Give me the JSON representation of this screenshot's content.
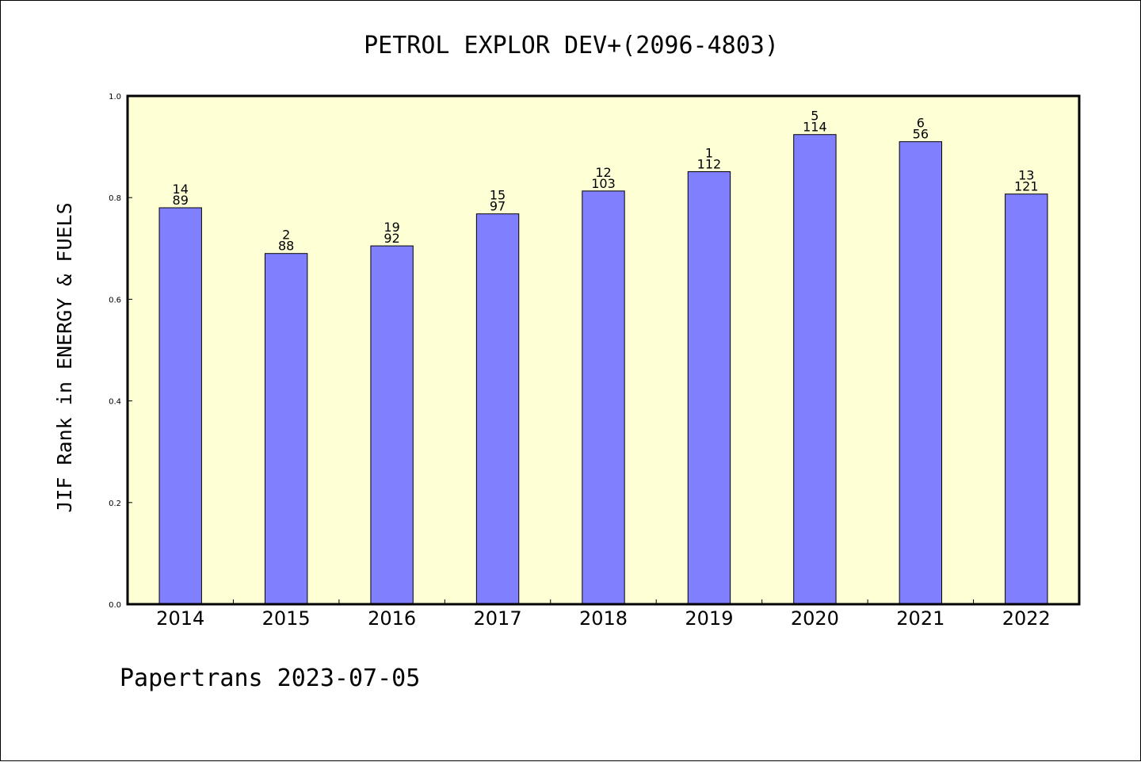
{
  "chart_data": {
    "type": "bar",
    "title": "PETROL EXPLOR DEV+(2096-4803)",
    "xlabel": "",
    "ylabel": "JIF Rank in ENERGY & FUELS",
    "ylim": [
      0,
      1.0
    ],
    "yticks": [
      "0.0",
      "0.2",
      "0.4",
      "0.6",
      "0.8",
      "1.0"
    ],
    "categories": [
      "2014",
      "2015",
      "2016",
      "2017",
      "2018",
      "2019",
      "2020",
      "2021",
      "2022"
    ],
    "values": [
      0.78,
      0.69,
      0.705,
      0.768,
      0.813,
      0.851,
      0.924,
      0.91,
      0.807
    ],
    "labels_top": [
      "14",
      "2",
      "19",
      "15",
      "12",
      "1",
      "5",
      "6",
      "13"
    ],
    "labels_bottom": [
      "89",
      "88",
      "92",
      "97",
      "103",
      "112",
      "114",
      "56",
      "121"
    ],
    "grid": false,
    "colors": {
      "plot_background": "#ffffd5",
      "bar_fill": "#8080ff",
      "bar_stroke": "#000000"
    }
  },
  "footer": "Papertrans 2023-07-05"
}
